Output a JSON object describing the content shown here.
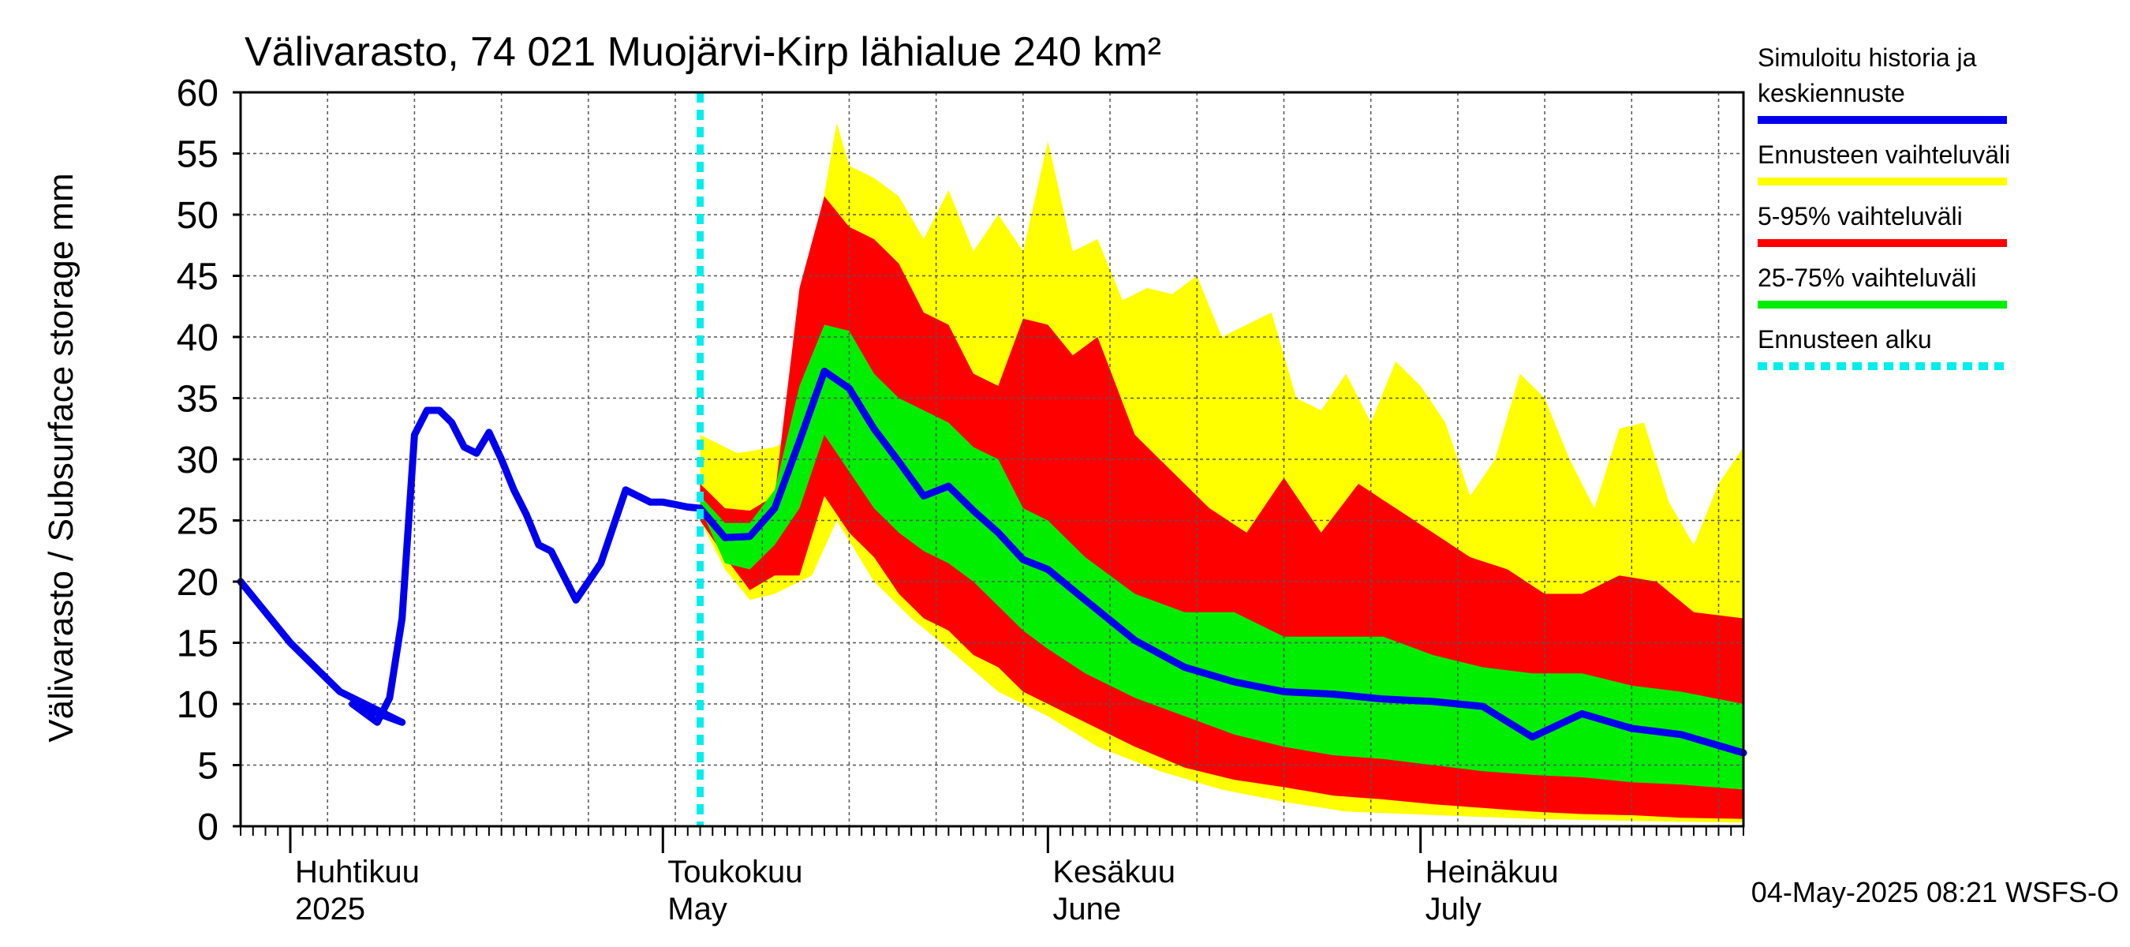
{
  "chart_data": {
    "type": "area",
    "title": "Välivarasto, 74 021 Muojärvi-Kirp lähialue 240 km²",
    "ylabel": "Välivarasto / Subsurface storage  mm",
    "footer": "04-May-2025 08:21 WSFS-O",
    "ylim": [
      0,
      60
    ],
    "yticks": [
      0,
      5,
      10,
      15,
      20,
      25,
      30,
      35,
      40,
      45,
      50,
      55,
      60
    ],
    "x_axis": {
      "start": "2025-03-28",
      "end": "2025-07-27",
      "months": [
        {
          "date": "2025-04-01",
          "fi": "Huhtikuu",
          "en": "2025"
        },
        {
          "date": "2025-05-01",
          "fi": "Toukokuu",
          "en": "May"
        },
        {
          "date": "2025-06-01",
          "fi": "Kesäkuu",
          "en": "June"
        },
        {
          "date": "2025-07-01",
          "fi": "Heinäkuu",
          "en": "July"
        }
      ]
    },
    "grid": true,
    "legend_position": "right",
    "colors": {
      "history": "#0000ee",
      "range": "#ffff00",
      "p5_95": "#ff0000",
      "p25_75": "#00ee00",
      "forecast_start": "#00eeee"
    },
    "legend": [
      {
        "key": "history",
        "lines": [
          "Simuloitu historia ja",
          "keskiennuste"
        ]
      },
      {
        "key": "range",
        "lines": [
          "Ennusteen vaihteluväli"
        ]
      },
      {
        "key": "p5_95",
        "lines": [
          "5-95% vaihteluväli"
        ]
      },
      {
        "key": "p25_75",
        "lines": [
          "25-75% vaihteluväli"
        ]
      },
      {
        "key": "forecast_start",
        "lines": [
          "Ennusteen alku"
        ]
      }
    ],
    "forecast_start": "2025-05-04",
    "series": {
      "history": {
        "x": [
          "2025-03-28",
          "2025-04-01",
          "2025-04-05",
          "2025-04-10",
          "2025-04-06",
          "2025-04-08",
          "2025-04-09",
          "2025-04-10",
          "2025-04-11",
          "2025-04-12",
          "2025-04-13",
          "2025-04-14",
          "2025-04-15",
          "2025-04-16",
          "2025-04-17",
          "2025-04-18",
          "2025-04-19",
          "2025-04-20",
          "2025-04-21",
          "2025-04-22",
          "2025-04-23",
          "2025-04-24",
          "2025-04-26",
          "2025-04-28",
          "2025-04-30",
          "2025-05-01",
          "2025-05-02",
          "2025-05-03",
          "2025-05-04"
        ],
        "y": [
          20,
          15,
          11,
          8.5,
          10,
          8.5,
          10.5,
          17,
          32,
          34,
          34,
          33,
          31,
          30.5,
          32.2,
          30,
          27.5,
          25.5,
          23,
          22.5,
          20.5,
          18.5,
          21.5,
          27.5,
          26.5,
          26.5,
          26.3,
          26.1,
          26
        ]
      },
      "median": {
        "x": [
          "2025-05-04",
          "2025-05-06",
          "2025-05-08",
          "2025-05-10",
          "2025-05-12",
          "2025-05-14",
          "2025-05-16",
          "2025-05-18",
          "2025-05-20",
          "2025-05-22",
          "2025-05-24",
          "2025-05-26",
          "2025-05-28",
          "2025-05-30",
          "2025-06-01",
          "2025-06-04",
          "2025-06-08",
          "2025-06-12",
          "2025-06-16",
          "2025-06-20",
          "2025-06-24",
          "2025-06-28",
          "2025-07-02",
          "2025-07-06",
          "2025-07-10",
          "2025-07-14",
          "2025-07-18",
          "2025-07-22",
          "2025-07-27"
        ],
        "y": [
          26,
          23.6,
          23.7,
          26,
          31.5,
          37.2,
          35.8,
          32.5,
          29.8,
          27,
          27.8,
          25.8,
          24,
          21.8,
          21,
          18.5,
          15.2,
          13,
          11.8,
          11,
          10.8,
          10.4,
          10.2,
          9.8,
          7.3,
          9.2,
          8,
          7.5,
          6
        ]
      },
      "range_upper": {
        "x": [
          "2025-05-04",
          "2025-05-07",
          "2025-05-10",
          "2025-05-12",
          "2025-05-13",
          "2025-05-15",
          "2025-05-16",
          "2025-05-18",
          "2025-05-20",
          "2025-05-22",
          "2025-05-24",
          "2025-05-26",
          "2025-05-28",
          "2025-05-30",
          "2025-06-01",
          "2025-06-03",
          "2025-06-05",
          "2025-06-07",
          "2025-06-09",
          "2025-06-11",
          "2025-06-13",
          "2025-06-15",
          "2025-06-17",
          "2025-06-19",
          "2025-06-21",
          "2025-06-23",
          "2025-06-25",
          "2025-06-27",
          "2025-06-29",
          "2025-07-01",
          "2025-07-03",
          "2025-07-05",
          "2025-07-07",
          "2025-07-09",
          "2025-07-11",
          "2025-07-13",
          "2025-07-15",
          "2025-07-17",
          "2025-07-19",
          "2025-07-21",
          "2025-07-23",
          "2025-07-25",
          "2025-07-27"
        ],
        "y": [
          32,
          30.5,
          31,
          32,
          46,
          57.5,
          54,
          53,
          51.5,
          48,
          52,
          47,
          50,
          47,
          56,
          47,
          48,
          43,
          44,
          43.5,
          45,
          40,
          41,
          42,
          35,
          34,
          37,
          33,
          38,
          36,
          33,
          27,
          30,
          37,
          35,
          30,
          26,
          32.5,
          33,
          26.5,
          23,
          28,
          31
        ]
      },
      "range_lower": {
        "x": [
          "2025-05-04",
          "2025-05-06",
          "2025-05-08",
          "2025-05-10",
          "2025-05-12",
          "2025-05-13",
          "2025-05-15",
          "2025-05-18",
          "2025-05-21",
          "2025-05-24",
          "2025-05-28",
          "2025-06-01",
          "2025-06-05",
          "2025-06-10",
          "2025-06-15",
          "2025-06-20",
          "2025-06-25",
          "2025-06-30",
          "2025-07-05",
          "2025-07-10",
          "2025-07-15",
          "2025-07-20",
          "2025-07-27"
        ],
        "y": [
          25,
          21,
          18.5,
          19,
          20,
          20.5,
          25,
          20,
          17,
          14.5,
          11,
          9,
          6.5,
          4.5,
          3,
          2,
          1.2,
          1,
          0.8,
          0.6,
          0.5,
          0.4,
          0.3
        ]
      },
      "p95": {
        "x": [
          "2025-05-04",
          "2025-05-06",
          "2025-05-08",
          "2025-05-10",
          "2025-05-12",
          "2025-05-14",
          "2025-05-16",
          "2025-05-18",
          "2025-05-20",
          "2025-05-22",
          "2025-05-24",
          "2025-05-26",
          "2025-05-28",
          "2025-05-30",
          "2025-06-01",
          "2025-06-03",
          "2025-06-05",
          "2025-06-08",
          "2025-06-11",
          "2025-06-14",
          "2025-06-17",
          "2025-06-20",
          "2025-06-23",
          "2025-06-26",
          "2025-06-29",
          "2025-07-02",
          "2025-07-05",
          "2025-07-08",
          "2025-07-11",
          "2025-07-14",
          "2025-07-17",
          "2025-07-20",
          "2025-07-23",
          "2025-07-27"
        ],
        "y": [
          28,
          26,
          25.8,
          27,
          44,
          51.5,
          49,
          48,
          46,
          42,
          41,
          37,
          36,
          41.5,
          41,
          38.5,
          40,
          32,
          29,
          26,
          24,
          28.5,
          24,
          28,
          26,
          24,
          22,
          21,
          19,
          19,
          20.5,
          20,
          17.5,
          17
        ]
      },
      "p5": {
        "x": [
          "2025-05-04",
          "2025-05-06",
          "2025-05-08",
          "2025-05-10",
          "2025-05-12",
          "2025-05-14",
          "2025-05-16",
          "2025-05-18",
          "2025-05-20",
          "2025-05-22",
          "2025-05-24",
          "2025-05-26",
          "2025-05-28",
          "2025-05-30",
          "2025-06-01",
          "2025-06-04",
          "2025-06-08",
          "2025-06-12",
          "2025-06-16",
          "2025-06-20",
          "2025-06-24",
          "2025-06-28",
          "2025-07-02",
          "2025-07-06",
          "2025-07-10",
          "2025-07-14",
          "2025-07-18",
          "2025-07-22",
          "2025-07-27"
        ],
        "y": [
          25,
          22,
          19.3,
          20.5,
          20.5,
          27,
          24,
          22,
          19,
          17,
          16,
          14,
          13,
          11,
          10,
          8.5,
          6.5,
          4.8,
          3.8,
          3.2,
          2.5,
          2.2,
          1.8,
          1.5,
          1.2,
          1,
          0.9,
          0.7,
          0.6
        ]
      },
      "p75": {
        "x": [
          "2025-05-04",
          "2025-05-06",
          "2025-05-08",
          "2025-05-10",
          "2025-05-12",
          "2025-05-14",
          "2025-05-16",
          "2025-05-18",
          "2025-05-20",
          "2025-05-22",
          "2025-05-24",
          "2025-05-26",
          "2025-05-28",
          "2025-05-30",
          "2025-06-01",
          "2025-06-04",
          "2025-06-08",
          "2025-06-12",
          "2025-06-16",
          "2025-06-20",
          "2025-06-24",
          "2025-06-28",
          "2025-07-02",
          "2025-07-06",
          "2025-07-10",
          "2025-07-14",
          "2025-07-18",
          "2025-07-22",
          "2025-07-27"
        ],
        "y": [
          27,
          24.8,
          24.8,
          27.5,
          36,
          41,
          40.5,
          37,
          35,
          34,
          33,
          31,
          30,
          26,
          25,
          22,
          19,
          17.5,
          17.5,
          15.5,
          15.5,
          15.5,
          14,
          13,
          12.5,
          12.5,
          11.5,
          11,
          10
        ]
      },
      "p25": {
        "x": [
          "2025-05-04",
          "2025-05-06",
          "2025-05-08",
          "2025-05-10",
          "2025-05-12",
          "2025-05-14",
          "2025-05-16",
          "2025-05-18",
          "2025-05-20",
          "2025-05-22",
          "2025-05-24",
          "2025-05-26",
          "2025-05-28",
          "2025-05-30",
          "2025-06-01",
          "2025-06-04",
          "2025-06-08",
          "2025-06-12",
          "2025-06-16",
          "2025-06-20",
          "2025-06-24",
          "2025-06-28",
          "2025-07-02",
          "2025-07-06",
          "2025-07-10",
          "2025-07-14",
          "2025-07-18",
          "2025-07-22",
          "2025-07-27"
        ],
        "y": [
          26,
          21.5,
          21,
          23,
          26,
          32,
          29,
          26,
          24,
          22.5,
          21.5,
          20,
          18,
          16,
          14.5,
          12.5,
          10.5,
          9,
          7.5,
          6.5,
          5.8,
          5.5,
          5,
          4.5,
          4.2,
          4,
          3.6,
          3.4,
          3
        ]
      }
    }
  }
}
